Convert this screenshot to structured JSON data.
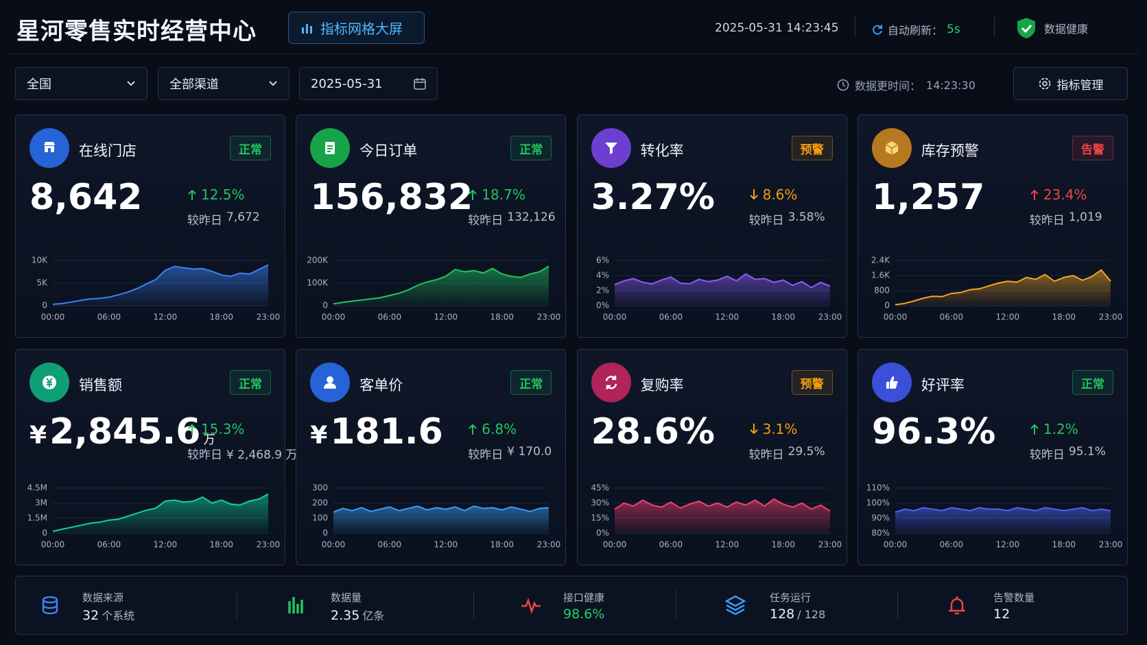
{
  "header": {
    "title": "星河零售实时经营中心",
    "badge": "指标网格大屏",
    "datetime": "2025-05-31 14:23:45",
    "refresh_label": "自动刷新：",
    "refresh_value": "5s",
    "health": "数据健康"
  },
  "filters": {
    "region": "全国",
    "channel": "全部渠道",
    "date": "2025-05-31",
    "update_label": "数据更时间：",
    "update_time": "14:23:30",
    "manage": "指标管理"
  },
  "cards": [
    {
      "name": "在线门店",
      "status": "正常",
      "status_color": "#22c55e",
      "value": "8,642",
      "direction": "up",
      "trend_color": "#22c55e",
      "change": "12.5%",
      "compare_label": "较昨日",
      "compare": "7,672",
      "icon_color": "#2563d6",
      "chart": {
        "type": "area",
        "color": "#3b82f6",
        "categories": [
          "00:00",
          null,
          null,
          null,
          null,
          null,
          "06:00",
          null,
          null,
          null,
          null,
          null,
          "12:00",
          null,
          null,
          null,
          null,
          null,
          "18:00",
          null,
          null,
          null,
          null,
          "23:00"
        ],
        "values": [
          300,
          500,
          800,
          1200,
          1500,
          1600,
          1900,
          2400,
          3000,
          3800,
          4800,
          5800,
          7800,
          8700,
          8400,
          8100,
          8200,
          7600,
          6800,
          6500,
          7200,
          7000,
          8000,
          9000
        ],
        "ylim": [
          0,
          10000
        ],
        "yticks": [
          0,
          {
            "value": 5000,
            "label": "5K"
          },
          {
            "value": 10000,
            "label": "10K"
          }
        ]
      }
    },
    {
      "name": "今日订单",
      "status": "正常",
      "status_color": "#22c55e",
      "value": "156,832",
      "direction": "up",
      "trend_color": "#22c55e",
      "change": "18.7%",
      "compare_label": "较昨日",
      "compare": "132,126",
      "icon_color": "#16a34a",
      "chart": {
        "type": "area",
        "color": "#22c55e",
        "categories": [
          "00:00",
          null,
          null,
          null,
          null,
          null,
          "06:00",
          null,
          null,
          null,
          null,
          null,
          "12:00",
          null,
          null,
          null,
          null,
          null,
          "18:00",
          null,
          null,
          null,
          null,
          "23:00"
        ],
        "values": [
          8000,
          15000,
          20000,
          25000,
          30000,
          35000,
          45000,
          55000,
          70000,
          90000,
          105000,
          115000,
          130000,
          160000,
          150000,
          155000,
          145000,
          165000,
          140000,
          130000,
          125000,
          140000,
          150000,
          175000
        ],
        "ylim": [
          0,
          200000
        ],
        "yticks": [
          0,
          {
            "value": 100000,
            "label": "100K"
          },
          {
            "value": 200000,
            "label": "200K"
          }
        ]
      }
    },
    {
      "name": "转化率",
      "status": "预警",
      "status_color": "#f59e0b",
      "value": "3.27%",
      "direction": "down",
      "trend_color": "#f59e0b",
      "change": "8.6%",
      "compare_label": "较昨日",
      "compare": "3.58%",
      "icon_color": "#6d3fd1",
      "chart": {
        "type": "area",
        "color": "#8b5cf6",
        "categories": [
          "00:00",
          null,
          null,
          null,
          null,
          null,
          "06:00",
          null,
          null,
          null,
          null,
          null,
          "12:00",
          null,
          null,
          null,
          null,
          null,
          "18:00",
          null,
          null,
          null,
          null,
          "23:00"
        ],
        "values": [
          2.8,
          3.3,
          3.6,
          3.1,
          2.9,
          3.4,
          3.8,
          3.0,
          2.9,
          3.5,
          3.2,
          3.4,
          3.9,
          3.3,
          4.2,
          3.5,
          3.6,
          3.1,
          3.4,
          2.7,
          3.2,
          2.4,
          3.1,
          2.6
        ],
        "ylim": [
          0,
          6
        ],
        "yticks": [
          {
            "value": 0,
            "label": "0%"
          },
          {
            "value": 2,
            "label": "2%"
          },
          {
            "value": 4,
            "label": "4%"
          },
          {
            "value": 6,
            "label": "6%"
          }
        ]
      }
    },
    {
      "name": "库存预警",
      "status": "告警",
      "status_color": "#ef4444",
      "value": "1,257",
      "direction": "up",
      "trend_color": "#ef4444",
      "change": "23.4%",
      "compare_label": "较昨日",
      "compare": "1,019",
      "icon_color": "#b7791f",
      "chart": {
        "type": "area",
        "color": "#f5a524",
        "categories": [
          "00:00",
          null,
          null,
          null,
          null,
          null,
          "06:00",
          null,
          null,
          null,
          null,
          null,
          "12:00",
          null,
          null,
          null,
          null,
          null,
          "18:00",
          null,
          null,
          null,
          null,
          "23:00"
        ],
        "values": [
          50,
          120,
          250,
          400,
          500,
          480,
          650,
          700,
          850,
          900,
          1050,
          1200,
          1300,
          1250,
          1500,
          1400,
          1650,
          1300,
          1500,
          1600,
          1350,
          1550,
          1900,
          1300
        ],
        "ylim": [
          0,
          2400
        ],
        "yticks": [
          0,
          800,
          {
            "value": 1600,
            "label": "1.6K"
          },
          {
            "value": 2400,
            "label": "2.4K"
          }
        ]
      }
    },
    {
      "name": "销售额",
      "status": "正常",
      "status_color": "#22c55e",
      "value_prefix": "¥",
      "value": "2,845.6",
      "value_suffix": "万",
      "direction": "up",
      "trend_color": "#22c55e",
      "change": "15.3%",
      "compare_label": "较昨日",
      "compare": "¥ 2,468.9 万",
      "icon_color": "#0f9f77",
      "chart": {
        "type": "area",
        "color": "#10d39a",
        "categories": [
          "00:00",
          null,
          null,
          null,
          null,
          null,
          "06:00",
          null,
          null,
          null,
          null,
          null,
          "12:00",
          null,
          null,
          null,
          null,
          null,
          "18:00",
          null,
          null,
          null,
          null,
          "23:00"
        ],
        "values": [
          200000,
          400000,
          600000,
          800000,
          1000000,
          1100000,
          1300000,
          1400000,
          1700000,
          2000000,
          2300000,
          2500000,
          3200000,
          3300000,
          3100000,
          3200000,
          3600000,
          3000000,
          3300000,
          2900000,
          2800000,
          3200000,
          3400000,
          3900000
        ],
        "ylim": [
          0,
          4500000
        ],
        "yticks": [
          0,
          {
            "value": 1500000,
            "label": "1.5M"
          },
          {
            "value": 3000000,
            "label": "3M"
          },
          {
            "value": 4500000,
            "label": "4.5M"
          }
        ]
      }
    },
    {
      "name": "客单价",
      "status": "正常",
      "status_color": "#22c55e",
      "value_prefix": "¥",
      "value": "181.6",
      "direction": "up",
      "trend_color": "#22c55e",
      "change": "6.8%",
      "compare_label": "较昨日",
      "compare": "¥ 170.0",
      "icon_color": "#2563d6",
      "chart": {
        "type": "area",
        "color": "#3b9cf6",
        "categories": [
          "00:00",
          null,
          null,
          null,
          null,
          null,
          "06:00",
          null,
          null,
          null,
          null,
          null,
          "12:00",
          null,
          null,
          null,
          null,
          null,
          "18:00",
          null,
          null,
          null,
          null,
          "23:00"
        ],
        "values": [
          140,
          165,
          150,
          170,
          145,
          160,
          175,
          150,
          165,
          180,
          155,
          170,
          160,
          175,
          150,
          180,
          165,
          170,
          155,
          175,
          160,
          145,
          165,
          170
        ],
        "ylim": [
          0,
          300
        ],
        "yticks": [
          0,
          100,
          200,
          300
        ]
      }
    },
    {
      "name": "复购率",
      "status": "预警",
      "status_color": "#f59e0b",
      "value": "28.6%",
      "direction": "down",
      "trend_color": "#f59e0b",
      "change": "3.1%",
      "compare_label": "较昨日",
      "compare": "29.5%",
      "icon_color": "#b0245a",
      "chart": {
        "type": "area",
        "color": "#f43f6e",
        "categories": [
          "00:00",
          null,
          null,
          null,
          null,
          null,
          "06:00",
          null,
          null,
          null,
          null,
          null,
          "12:00",
          null,
          null,
          null,
          null,
          null,
          "18:00",
          null,
          null,
          null,
          null,
          "23:00"
        ],
        "values": [
          24,
          30,
          27,
          33,
          28,
          26,
          31,
          25,
          29,
          32,
          27,
          30,
          26,
          31,
          28,
          33,
          27,
          34,
          29,
          26,
          30,
          24,
          28,
          22
        ],
        "ylim": [
          0,
          45
        ],
        "yticks": [
          {
            "value": 0,
            "label": "0%"
          },
          {
            "value": 15,
            "label": "15%"
          },
          {
            "value": 30,
            "label": "30%"
          },
          {
            "value": 45,
            "label": "45%"
          }
        ]
      }
    },
    {
      "name": "好评率",
      "status": "正常",
      "status_color": "#22c55e",
      "value": "96.3%",
      "direction": "up",
      "trend_color": "#22c55e",
      "change": "1.2%",
      "compare_label": "较昨日",
      "compare": "95.1%",
      "icon_color": "#3b4fd8",
      "chart": {
        "type": "area",
        "color": "#4f62f5",
        "categories": [
          "00:00",
          null,
          null,
          null,
          null,
          null,
          "06:00",
          null,
          null,
          null,
          null,
          null,
          "12:00",
          null,
          null,
          null,
          null,
          null,
          "18:00",
          null,
          null,
          null,
          null,
          "23:00"
        ],
        "values": [
          94,
          96,
          95,
          97,
          96,
          95,
          97,
          96,
          95,
          97,
          96,
          96,
          95,
          97,
          96,
          95,
          97,
          96,
          95,
          96,
          97,
          95,
          96,
          95
        ],
        "ylim": [
          80,
          110
        ],
        "yticks": [
          {
            "value": 80,
            "label": "80%"
          },
          {
            "value": 90,
            "label": "90%"
          },
          {
            "value": 100,
            "label": "100%"
          },
          {
            "value": 110,
            "label": "110%"
          }
        ]
      }
    }
  ],
  "stats": [
    {
      "label": "数据来源",
      "value": "32",
      "unit": "个系统",
      "color": "#3b82f6"
    },
    {
      "label": "数据量",
      "value": "2.35",
      "unit": "亿条",
      "color": "#22c55e"
    },
    {
      "label": "接口健康",
      "value": "98.6%",
      "color": "#ef4444",
      "value_color": "#22d36b"
    },
    {
      "label": "任务运行",
      "value": "128",
      "unit": "/ 128",
      "color": "#3b9cf6"
    },
    {
      "label": "告警数量",
      "value": "12",
      "color": "#ef4444"
    }
  ]
}
